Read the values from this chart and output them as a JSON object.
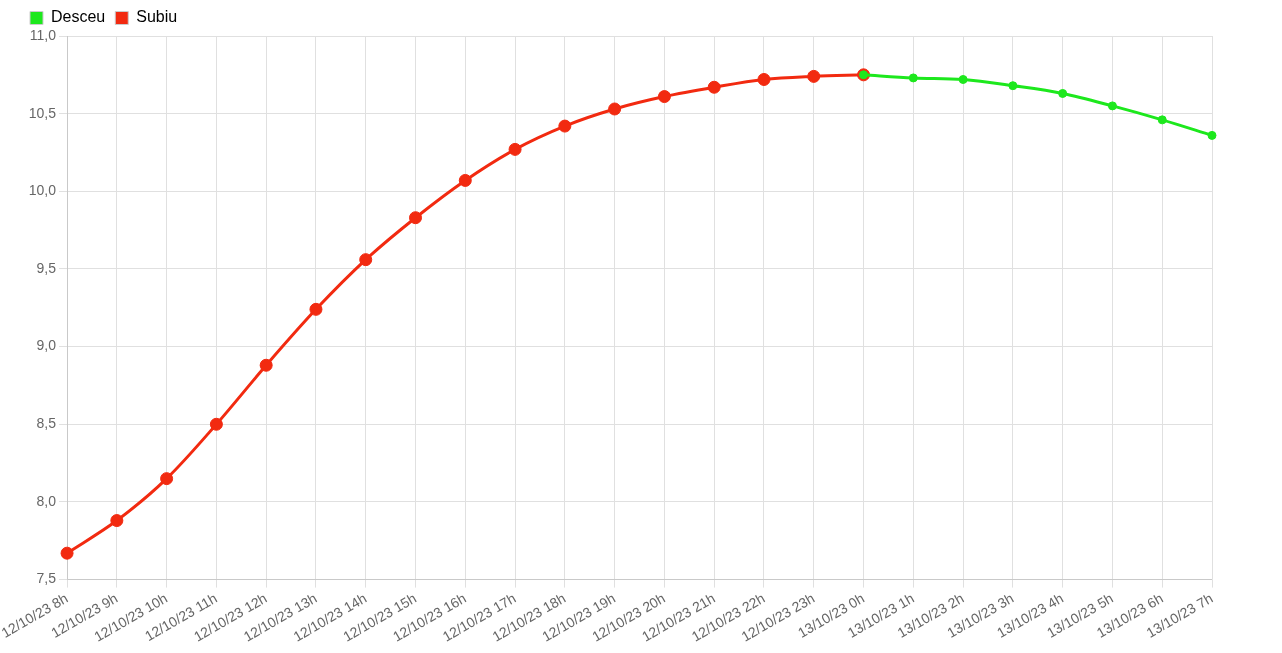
{
  "chart_data": {
    "type": "line",
    "categories": [
      "12/10/23 8h",
      "12/10/23 9h",
      "12/10/23 10h",
      "12/10/23 11h",
      "12/10/23 12h",
      "12/10/23 13h",
      "12/10/23 14h",
      "12/10/23 15h",
      "12/10/23 16h",
      "12/10/23 17h",
      "12/10/23 18h",
      "12/10/23 19h",
      "12/10/23 20h",
      "12/10/23 21h",
      "12/10/23 22h",
      "12/10/23 23h",
      "13/10/23 0h",
      "13/10/23 1h",
      "13/10/23 2h",
      "13/10/23 3h",
      "13/10/23 4h",
      "13/10/23 5h",
      "13/10/23 6h",
      "13/10/23 7h"
    ],
    "series": [
      {
        "name": "Desceu",
        "color": "#1de81d",
        "values": [
          null,
          null,
          null,
          null,
          null,
          null,
          null,
          null,
          null,
          null,
          null,
          null,
          null,
          null,
          null,
          null,
          10.75,
          10.73,
          10.72,
          10.68,
          10.63,
          10.55,
          10.46,
          10.36
        ]
      },
      {
        "name": "Subiu",
        "color": "#f22a10",
        "values": [
          7.67,
          7.88,
          8.15,
          8.5,
          8.88,
          9.24,
          9.56,
          9.83,
          10.07,
          10.27,
          10.42,
          10.53,
          10.61,
          10.67,
          10.72,
          10.74,
          10.75,
          null,
          null,
          null,
          null,
          null,
          null,
          null
        ]
      }
    ],
    "ylim": [
      7.5,
      11.0
    ],
    "yticks": [
      {
        "value": 7.5,
        "label": "7,5"
      },
      {
        "value": 8.0,
        "label": "8,0"
      },
      {
        "value": 8.5,
        "label": "8,5"
      },
      {
        "value": 9.0,
        "label": "9,0"
      },
      {
        "value": 9.5,
        "label": "9,5"
      },
      {
        "value": 10.0,
        "label": "10,0"
      },
      {
        "value": 10.5,
        "label": "10,5"
      },
      {
        "value": 11.0,
        "label": "11,0"
      }
    ],
    "grid": true,
    "legend": "top left",
    "marker": "circle",
    "line_style": "solid"
  }
}
